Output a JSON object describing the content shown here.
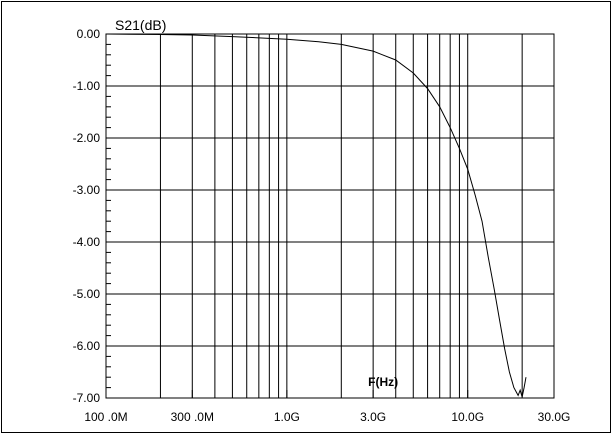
{
  "chart_data": {
    "type": "line",
    "title": "S21(dB)",
    "xlabel": "F(Hz)",
    "ylabel": "",
    "x_scale": "log",
    "xlim": [
      100000000,
      30000000000
    ],
    "ylim": [
      -7.0,
      0.0
    ],
    "grid": true,
    "x_ticks": [
      {
        "value": 100000000,
        "label": "100 .0M"
      },
      {
        "value": 300000000,
        "label": "300 .0M"
      },
      {
        "value": 1000000000,
        "label": "1.0G"
      },
      {
        "value": 3000000000,
        "label": "3.0G"
      },
      {
        "value": 10000000000,
        "label": "10.0G"
      },
      {
        "value": 30000000000,
        "label": "30.0G"
      }
    ],
    "y_ticks": [
      {
        "value": 0.0,
        "label": "0.00"
      },
      {
        "value": -1.0,
        "label": "-1.00"
      },
      {
        "value": -2.0,
        "label": "-2.00"
      },
      {
        "value": -3.0,
        "label": "-3.00"
      },
      {
        "value": -4.0,
        "label": "-4.00"
      },
      {
        "value": -5.0,
        "label": "-5.00"
      },
      {
        "value": -6.0,
        "label": "-6.00"
      },
      {
        "value": -7.0,
        "label": "-7.00"
      }
    ],
    "series": [
      {
        "color": "#000000",
        "x": [
          100000000,
          200000000,
          300000000,
          500000000,
          1000000000,
          1500000000,
          2000000000,
          3000000000,
          4000000000,
          5000000000,
          6000000000,
          7000000000,
          8000000000,
          9000000000,
          10000000000,
          11000000000,
          12000000000,
          13000000000,
          14000000000,
          15000000000,
          16000000000,
          17000000000,
          18000000000,
          19000000000,
          19500000000,
          20000000000,
          20500000000,
          21000000000
        ],
        "y": [
          0.0,
          -0.01,
          -0.02,
          -0.05,
          -0.1,
          -0.15,
          -0.2,
          -0.33,
          -0.5,
          -0.75,
          -1.05,
          -1.4,
          -1.8,
          -2.2,
          -2.6,
          -3.1,
          -3.6,
          -4.3,
          -4.9,
          -5.5,
          -6.05,
          -6.5,
          -6.8,
          -6.95,
          -6.85,
          -6.98,
          -6.8,
          -6.6
        ]
      }
    ]
  }
}
